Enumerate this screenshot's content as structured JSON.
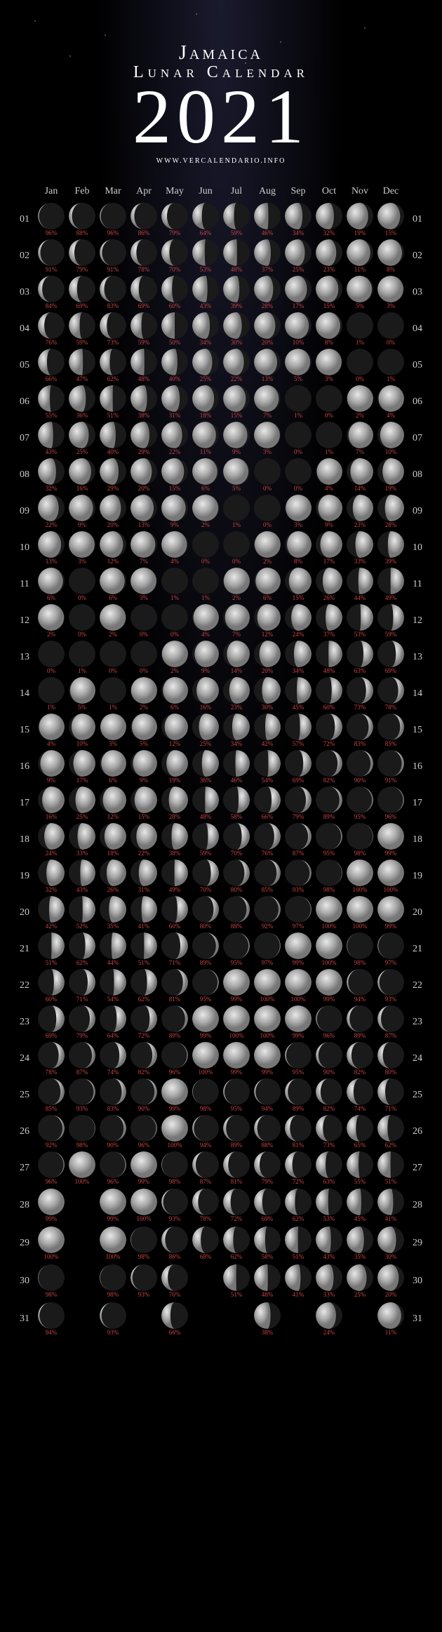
{
  "header": {
    "country": "Jamaica",
    "subtitle": "Lunar Calendar",
    "year": "2021",
    "url": "WWW.VERCALENDARIO.INFO"
  },
  "months": [
    "Jan",
    "Feb",
    "Mar",
    "Apr",
    "May",
    "Jun",
    "Jul",
    "Aug",
    "Sep",
    "Oct",
    "Nov",
    "Dec"
  ],
  "daysInMonth": [
    31,
    28,
    31,
    30,
    31,
    30,
    31,
    31,
    30,
    31,
    30,
    31
  ],
  "moon_colors": {
    "dark": "#1a1a1a",
    "light_center": "#dddddd",
    "light_edge": "#666666"
  },
  "pct_color": "#cc4444",
  "data": [
    [
      96,
      88,
      96,
      86,
      79,
      64,
      59,
      46,
      34,
      32,
      19,
      15
    ],
    [
      91,
      79,
      91,
      78,
      70,
      53,
      48,
      37,
      25,
      23,
      11,
      8
    ],
    [
      84,
      69,
      83,
      69,
      60,
      43,
      39,
      28,
      17,
      15,
      5,
      3
    ],
    [
      76,
      59,
      73,
      59,
      50,
      34,
      30,
      20,
      10,
      8,
      1,
      0
    ],
    [
      66,
      47,
      62,
      48,
      40,
      25,
      22,
      13,
      5,
      3,
      0,
      1
    ],
    [
      55,
      36,
      51,
      38,
      31,
      18,
      15,
      7,
      1,
      0,
      2,
      4
    ],
    [
      43,
      25,
      40,
      29,
      22,
      11,
      9,
      3,
      0,
      1,
      7,
      10
    ],
    [
      32,
      16,
      29,
      20,
      15,
      6,
      5,
      0,
      0,
      4,
      14,
      19
    ],
    [
      22,
      9,
      20,
      13,
      9,
      2,
      1,
      0,
      3,
      9,
      23,
      28
    ],
    [
      13,
      3,
      12,
      7,
      4,
      0,
      0,
      2,
      8,
      17,
      33,
      39
    ],
    [
      6,
      0,
      6,
      3,
      1,
      1,
      2,
      6,
      15,
      26,
      44,
      49
    ],
    [
      2,
      0,
      2,
      0,
      0,
      4,
      7,
      12,
      24,
      37,
      53,
      59
    ],
    [
      0,
      1,
      0,
      0,
      2,
      9,
      14,
      20,
      34,
      48,
      63,
      69
    ],
    [
      1,
      5,
      1,
      2,
      6,
      16,
      23,
      30,
      45,
      60,
      73,
      78
    ],
    [
      4,
      10,
      3,
      5,
      12,
      25,
      34,
      42,
      57,
      72,
      83,
      85
    ],
    [
      9,
      17,
      6,
      9,
      19,
      36,
      46,
      54,
      69,
      82,
      90,
      91
    ],
    [
      16,
      25,
      12,
      15,
      28,
      48,
      58,
      66,
      79,
      89,
      95,
      96
    ],
    [
      24,
      33,
      18,
      22,
      38,
      59,
      70,
      76,
      87,
      95,
      98,
      99
    ],
    [
      32,
      43,
      26,
      31,
      49,
      70,
      80,
      85,
      93,
      98,
      100,
      100
    ],
    [
      42,
      52,
      35,
      41,
      60,
      80,
      88,
      92,
      97,
      100,
      100,
      99
    ],
    [
      51,
      62,
      44,
      51,
      71,
      89,
      95,
      97,
      99,
      100,
      98,
      97
    ],
    [
      60,
      71,
      54,
      62,
      81,
      95,
      99,
      100,
      100,
      99,
      94,
      93
    ],
    [
      69,
      79,
      64,
      72,
      89,
      99,
      100,
      100,
      99,
      96,
      89,
      87
    ],
    [
      78,
      87,
      74,
      82,
      96,
      100,
      99,
      99,
      95,
      90,
      82,
      80
    ],
    [
      85,
      93,
      83,
      90,
      99,
      98,
      95,
      94,
      89,
      82,
      74,
      71
    ],
    [
      92,
      98,
      90,
      96,
      100,
      94,
      89,
      88,
      81,
      73,
      65,
      62
    ],
    [
      96,
      100,
      96,
      99,
      98,
      87,
      81,
      79,
      72,
      63,
      55,
      51
    ],
    [
      99,
      null,
      99,
      100,
      93,
      78,
      72,
      69,
      62,
      53,
      45,
      41
    ],
    [
      100,
      null,
      100,
      98,
      86,
      68,
      62,
      58,
      51,
      43,
      35,
      30
    ],
    [
      98,
      null,
      98,
      93,
      76,
      null,
      51,
      48,
      41,
      33,
      25,
      20
    ],
    [
      94,
      null,
      93,
      null,
      66,
      null,
      null,
      38,
      null,
      24,
      null,
      11
    ]
  ],
  "waxing": [
    [
      false,
      false,
      false,
      false,
      false,
      false,
      false,
      false,
      false,
      false,
      false,
      false
    ],
    [
      false,
      false,
      false,
      false,
      false,
      false,
      false,
      false,
      false,
      false,
      false,
      false
    ],
    [
      false,
      false,
      false,
      false,
      false,
      false,
      false,
      false,
      false,
      false,
      false,
      false
    ],
    [
      false,
      false,
      false,
      false,
      false,
      false,
      false,
      false,
      false,
      false,
      false,
      true
    ],
    [
      false,
      false,
      false,
      false,
      false,
      false,
      false,
      false,
      false,
      false,
      true,
      true
    ],
    [
      false,
      false,
      false,
      false,
      false,
      false,
      false,
      false,
      false,
      true,
      true,
      true
    ],
    [
      false,
      false,
      false,
      false,
      false,
      false,
      false,
      false,
      true,
      true,
      true,
      true
    ],
    [
      false,
      false,
      false,
      false,
      false,
      false,
      false,
      true,
      true,
      true,
      true,
      true
    ],
    [
      false,
      false,
      false,
      false,
      false,
      false,
      false,
      true,
      true,
      true,
      true,
      true
    ],
    [
      false,
      false,
      false,
      false,
      false,
      true,
      true,
      true,
      true,
      true,
      true,
      true
    ],
    [
      false,
      true,
      false,
      false,
      false,
      true,
      true,
      true,
      true,
      true,
      true,
      true
    ],
    [
      false,
      true,
      false,
      true,
      true,
      true,
      true,
      true,
      true,
      true,
      true,
      true
    ],
    [
      true,
      true,
      true,
      true,
      true,
      true,
      true,
      true,
      true,
      true,
      true,
      true
    ],
    [
      true,
      true,
      true,
      true,
      true,
      true,
      true,
      true,
      true,
      true,
      true,
      true
    ],
    [
      true,
      true,
      true,
      true,
      true,
      true,
      true,
      true,
      true,
      true,
      true,
      true
    ],
    [
      true,
      true,
      true,
      true,
      true,
      true,
      true,
      true,
      true,
      true,
      true,
      true
    ],
    [
      true,
      true,
      true,
      true,
      true,
      true,
      true,
      true,
      true,
      true,
      true,
      true
    ],
    [
      true,
      true,
      true,
      true,
      true,
      true,
      true,
      true,
      true,
      true,
      true,
      true
    ],
    [
      true,
      true,
      true,
      true,
      true,
      true,
      true,
      true,
      true,
      true,
      true,
      true
    ],
    [
      true,
      true,
      true,
      true,
      true,
      true,
      true,
      true,
      true,
      true,
      false,
      false
    ],
    [
      true,
      true,
      true,
      true,
      true,
      true,
      true,
      true,
      true,
      false,
      false,
      false
    ],
    [
      true,
      true,
      true,
      true,
      true,
      true,
      true,
      true,
      false,
      false,
      false,
      false
    ],
    [
      true,
      true,
      true,
      true,
      true,
      true,
      false,
      false,
      false,
      false,
      false,
      false
    ],
    [
      true,
      true,
      true,
      true,
      true,
      false,
      false,
      false,
      false,
      false,
      false,
      false
    ],
    [
      true,
      true,
      true,
      true,
      true,
      false,
      false,
      false,
      false,
      false,
      false,
      false
    ],
    [
      true,
      true,
      true,
      true,
      false,
      false,
      false,
      false,
      false,
      false,
      false,
      false
    ],
    [
      true,
      true,
      true,
      true,
      false,
      false,
      false,
      false,
      false,
      false,
      false,
      false
    ],
    [
      true,
      null,
      true,
      false,
      false,
      false,
      false,
      false,
      false,
      false,
      false,
      false
    ],
    [
      false,
      null,
      false,
      false,
      false,
      false,
      false,
      false,
      false,
      false,
      false,
      false
    ],
    [
      false,
      null,
      false,
      false,
      false,
      null,
      false,
      false,
      false,
      false,
      false,
      false
    ],
    [
      false,
      null,
      false,
      null,
      false,
      null,
      null,
      false,
      null,
      false,
      null,
      false
    ]
  ]
}
